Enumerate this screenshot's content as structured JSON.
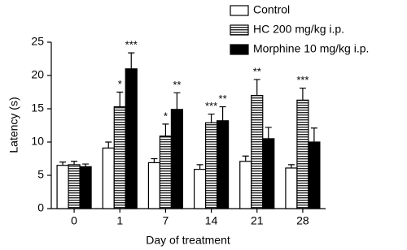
{
  "chart_data": {
    "type": "bar",
    "xlabel": "Day of treatment",
    "ylabel": "Latency (s)",
    "categories": [
      "0",
      "1",
      "7",
      "14",
      "21",
      "28"
    ],
    "ylim": [
      0,
      25
    ],
    "yticks": [
      0,
      5,
      10,
      15,
      20,
      25
    ],
    "grid": false,
    "legend": "top-right",
    "series": [
      {
        "name": "Control",
        "color": "#ffffff",
        "pattern": "solid",
        "values": [
          6.5,
          9.1,
          6.9,
          5.9,
          7.1,
          6.1
        ],
        "errors": [
          0.5,
          0.9,
          0.6,
          0.7,
          0.8,
          0.5
        ],
        "annotations": [
          null,
          null,
          null,
          null,
          null,
          null
        ]
      },
      {
        "name": "HC 200 mg/kg i.p.",
        "color": "#ffffff",
        "pattern": "horizontal-lines",
        "values": [
          6.6,
          15.3,
          10.9,
          12.9,
          17.0,
          16.3
        ],
        "errors": [
          0.5,
          2.2,
          1.8,
          1.3,
          2.4,
          1.8
        ],
        "annotations": [
          null,
          "*",
          "*",
          "***",
          "**",
          "***"
        ]
      },
      {
        "name": "Morphine 10 mg/kg i.p.",
        "color": "#000000",
        "pattern": "solid",
        "values": [
          6.3,
          21.0,
          14.9,
          13.2,
          10.5,
          10.0
        ],
        "errors": [
          0.4,
          2.4,
          2.5,
          2.1,
          1.7,
          2.1
        ],
        "annotations": [
          null,
          "***",
          "**",
          "**",
          null,
          null
        ]
      }
    ]
  }
}
